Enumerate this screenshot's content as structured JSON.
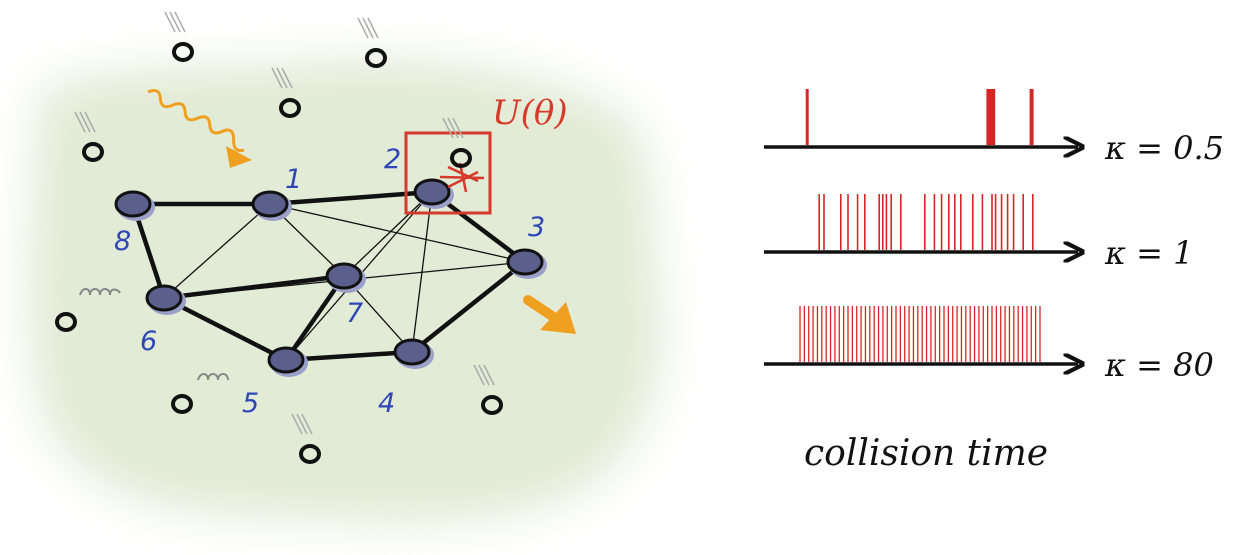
{
  "unitary_label": "U(θ)",
  "nodes": [
    {
      "id": "1"
    },
    {
      "id": "2"
    },
    {
      "id": "3"
    },
    {
      "id": "4"
    },
    {
      "id": "5"
    },
    {
      "id": "6"
    },
    {
      "id": "7"
    },
    {
      "id": "8"
    }
  ],
  "edges": [
    [
      "8",
      "1"
    ],
    [
      "1",
      "2"
    ],
    [
      "2",
      "3"
    ],
    [
      "3",
      "4"
    ],
    [
      "4",
      "5"
    ],
    [
      "5",
      "6"
    ],
    [
      "6",
      "8"
    ],
    [
      "6",
      "7"
    ],
    [
      "1",
      "7"
    ],
    [
      "7",
      "5"
    ],
    [
      "7",
      "4"
    ],
    [
      "2",
      "7"
    ],
    [
      "1",
      "6"
    ],
    [
      "1",
      "3"
    ],
    [
      "2",
      "4"
    ],
    [
      "6",
      "3"
    ],
    [
      "5",
      "2"
    ]
  ],
  "rows": [
    {
      "label": "κ = 0.5",
      "collisions": [
        0.03,
        0.78,
        0.785,
        0.79,
        0.795,
        0.8,
        0.805,
        0.81,
        0.96,
        0.965,
        0.97
      ]
    },
    {
      "label": "κ = 1",
      "collisions": [
        0.08,
        0.1,
        0.17,
        0.2,
        0.24,
        0.27,
        0.33,
        0.345,
        0.36,
        0.38,
        0.42,
        0.52,
        0.56,
        0.59,
        0.62,
        0.645,
        0.67,
        0.72,
        0.76,
        0.8,
        0.815,
        0.84,
        0.865,
        0.89,
        0.93,
        0.97
      ]
    },
    {
      "label": "κ = 80",
      "collisions": "dense"
    }
  ],
  "xlabel": "collision time",
  "colors": {
    "node": "#5a5f8c",
    "node_shadow": "#9aa0c8",
    "label": "#2f46b8",
    "collision": "#d92525",
    "box": "#d63a2a",
    "arrow": "#f0a020",
    "background_blob": "#e4ecd9"
  },
  "icons": [
    "incoming-particle-icon",
    "wavy-photon-icon",
    "outgoing-arrow-icon",
    "collision-star-icon"
  ]
}
